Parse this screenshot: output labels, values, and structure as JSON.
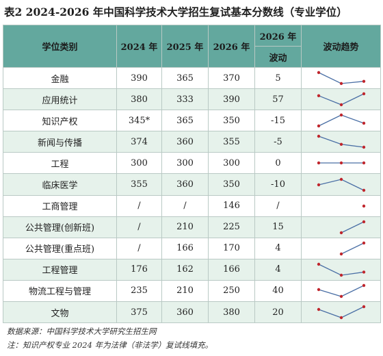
{
  "title": "表2  2024-2026 年中国科学技术大学招生复试基本分数线（专业学位）",
  "headers": {
    "category": "学位类别",
    "y2024": "2024 年",
    "y2025": "2025 年",
    "y2026": "2026 年",
    "change_top": "2026 年",
    "change_bottom": "波动",
    "trend": "波动趋势"
  },
  "rows": [
    {
      "name": "金融",
      "y2024": "390",
      "y2025": "365",
      "y2026": "370",
      "change": "5",
      "series": [
        390,
        365,
        370
      ]
    },
    {
      "name": "应用统计",
      "y2024": "380",
      "y2025": "333",
      "y2026": "390",
      "change": "57",
      "series": [
        380,
        333,
        390
      ]
    },
    {
      "name": "知识产权",
      "y2024": "345*",
      "y2025": "365",
      "y2026": "350",
      "change": "-15",
      "series": [
        345,
        365,
        350
      ]
    },
    {
      "name": "新闻与传播",
      "y2024": "374",
      "y2025": "360",
      "y2026": "355",
      "change": "-5",
      "series": [
        374,
        360,
        355
      ]
    },
    {
      "name": "工程",
      "y2024": "300",
      "y2025": "300",
      "y2026": "300",
      "change": "0",
      "series": [
        300,
        300,
        300
      ]
    },
    {
      "name": "临床医学",
      "y2024": "355",
      "y2025": "360",
      "y2026": "350",
      "change": "-10",
      "series": [
        355,
        360,
        350
      ]
    },
    {
      "name": "工商管理",
      "y2024": "/",
      "y2025": "/",
      "y2026": "146",
      "change": "/",
      "series": [
        null,
        null,
        146
      ]
    },
    {
      "name": "公共管理(创新班)",
      "y2024": "/",
      "y2025": "210",
      "y2026": "225",
      "change": "15",
      "series": [
        null,
        210,
        225
      ]
    },
    {
      "name": "公共管理(重点班)",
      "y2024": "/",
      "y2025": "166",
      "y2026": "170",
      "change": "4",
      "series": [
        null,
        166,
        170
      ]
    },
    {
      "name": "工程管理",
      "y2024": "176",
      "y2025": "162",
      "y2026": "166",
      "change": "4",
      "series": [
        176,
        162,
        166
      ]
    },
    {
      "name": "物流工程与管理",
      "y2024": "235",
      "y2025": "210",
      "y2026": "250",
      "change": "40",
      "series": [
        235,
        210,
        250
      ]
    },
    {
      "name": "文物",
      "y2024": "375",
      "y2025": "360",
      "y2026": "380",
      "change": "20",
      "series": [
        375,
        360,
        380
      ]
    }
  ],
  "colors": {
    "header_bg": "#63a89e",
    "band_bg": "#e6f2eb",
    "line": "#4a6fa5",
    "marker": "#c0262d"
  },
  "notes": {
    "source": "数据来源：中国科学技术大学研究生招生网",
    "footnote": "注：知识产权专业 2024 年为法律（非法学）复试线填充。"
  }
}
